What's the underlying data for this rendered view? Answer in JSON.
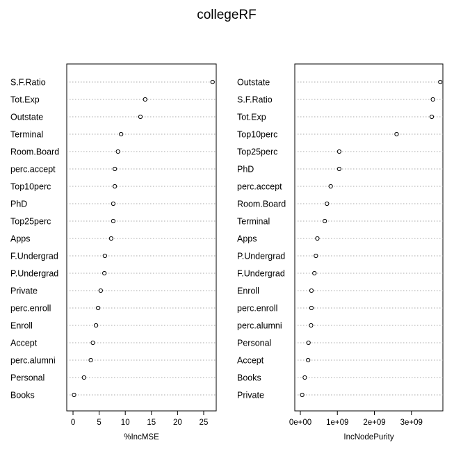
{
  "chart_data": {
    "title": "collegeRF",
    "panels": [
      {
        "type": "scatter",
        "style": "dotchart",
        "xlabel": "%IncMSE",
        "xlim": [
          -1.2,
          27.4
        ],
        "xticks": [
          0,
          5,
          10,
          15,
          20,
          25
        ],
        "xtick_labels": [
          "0",
          "5",
          "10",
          "15",
          "20",
          "25"
        ],
        "categories": [
          "S.F.Ratio",
          "Tot.Exp",
          "Outstate",
          "Terminal",
          "Room.Board",
          "perc.accept",
          "Top10perc",
          "PhD",
          "Top25perc",
          "Apps",
          "F.Undergrad",
          "P.Undergrad",
          "Private",
          "perc.enroll",
          "Enroll",
          "Accept",
          "perc.alumni",
          "Personal",
          "Books"
        ],
        "values": [
          26.7,
          13.8,
          12.9,
          9.2,
          8.6,
          8.0,
          8.0,
          7.7,
          7.7,
          7.3,
          6.1,
          6.0,
          5.3,
          4.8,
          4.4,
          3.8,
          3.4,
          2.1,
          0.2
        ],
        "grid": "dotted horizontal lines"
      },
      {
        "type": "scatter",
        "style": "dotchart",
        "xlabel": "IncNodePurity",
        "xlim": [
          -0.15,
          3.85
        ],
        "xscale_note": "values in units of 1e9",
        "xticks": [
          0,
          1,
          2,
          3
        ],
        "xtick_labels": [
          "0e+00",
          "1e+09",
          "2e+09",
          "3e+09"
        ],
        "categories": [
          "Outstate",
          "S.F.Ratio",
          "Tot.Exp",
          "Top10perc",
          "Top25perc",
          "PhD",
          "perc.accept",
          "Room.Board",
          "Terminal",
          "Apps",
          "P.Undergrad",
          "F.Undergrad",
          "Enroll",
          "perc.enroll",
          "perc.alumni",
          "Personal",
          "Accept",
          "Books",
          "Private"
        ],
        "values": [
          3.78,
          3.58,
          3.55,
          2.6,
          1.05,
          1.05,
          0.82,
          0.72,
          0.66,
          0.46,
          0.42,
          0.38,
          0.3,
          0.3,
          0.29,
          0.22,
          0.21,
          0.12,
          0.05
        ],
        "grid": "dotted horizontal lines"
      }
    ]
  }
}
